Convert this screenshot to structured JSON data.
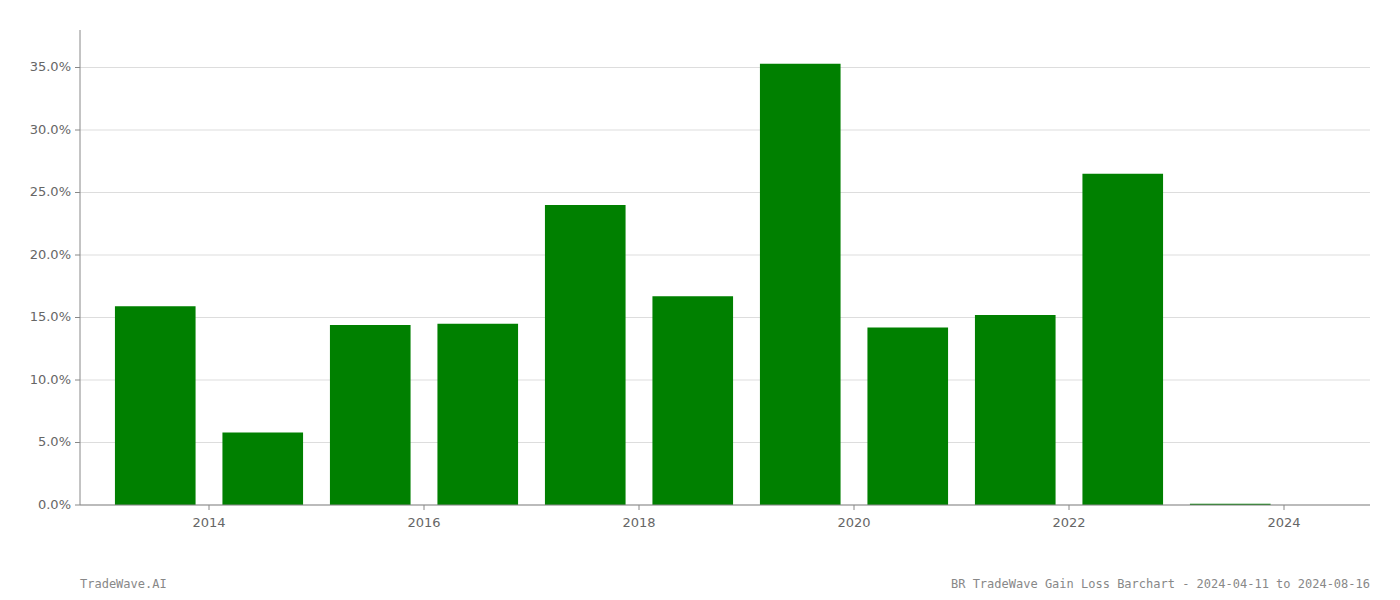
{
  "chart_data": {
    "type": "bar",
    "x": [
      2013,
      2014,
      2015,
      2016,
      2017,
      2018,
      2019,
      2020,
      2021,
      2022,
      2023
    ],
    "values": [
      0.159,
      0.058,
      0.144,
      0.145,
      0.24,
      0.167,
      0.353,
      0.142,
      0.152,
      0.265,
      0.001
    ],
    "color": "#008000",
    "xlim": [
      2012.3,
      2024.3
    ],
    "xticks": [
      {
        "value": 2013.5,
        "label": "2014"
      },
      {
        "value": 2015.5,
        "label": "2016"
      },
      {
        "value": 2017.5,
        "label": "2018"
      },
      {
        "value": 2019.5,
        "label": "2020"
      },
      {
        "value": 2021.5,
        "label": "2022"
      },
      {
        "value": 2023.5,
        "label": "2024"
      }
    ],
    "ylim": [
      0,
      0.38
    ],
    "yticks": [
      {
        "value": 0.0,
        "label": "0.0%"
      },
      {
        "value": 0.05,
        "label": "5.0%"
      },
      {
        "value": 0.1,
        "label": "10.0%"
      },
      {
        "value": 0.15,
        "label": "15.0%"
      },
      {
        "value": 0.2,
        "label": "20.0%"
      },
      {
        "value": 0.25,
        "label": "25.0%"
      },
      {
        "value": 0.3,
        "label": "30.0%"
      },
      {
        "value": 0.35,
        "label": "35.0%"
      }
    ],
    "grid": true,
    "annotations": [
      "TradeWave.AI",
      "BR TradeWave Gain Loss Barchart - 2024-04-11 to 2024-08-16"
    ]
  }
}
